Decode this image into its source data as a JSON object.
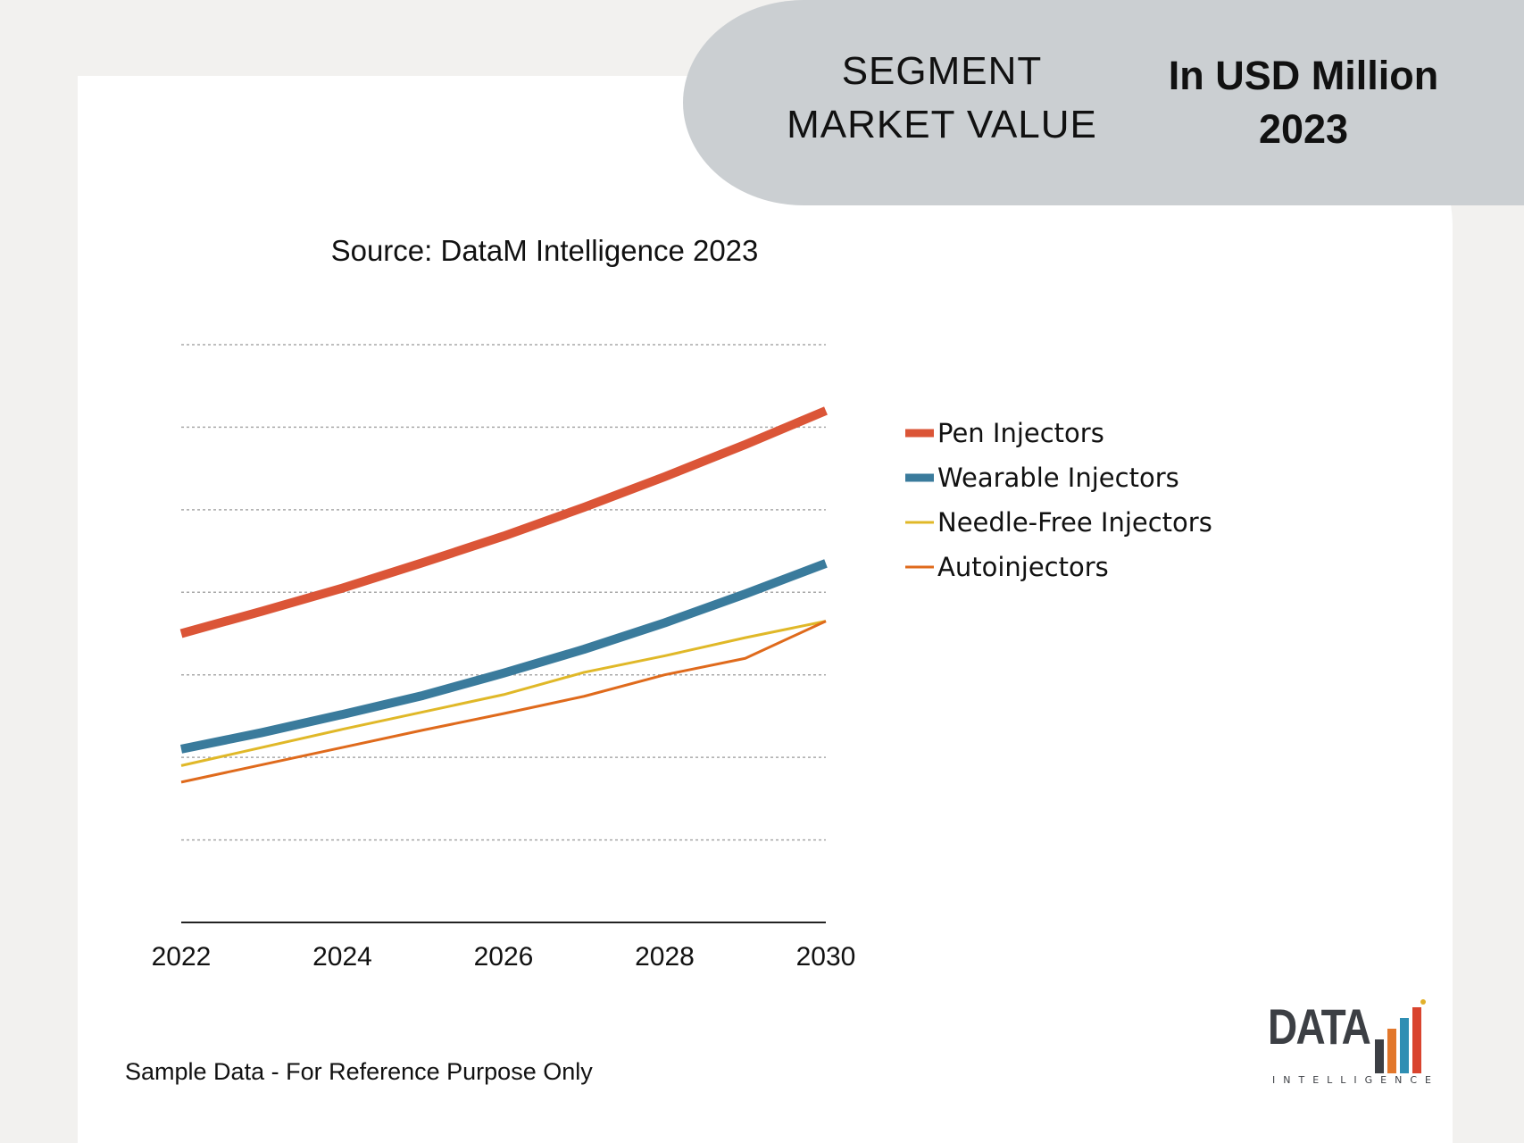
{
  "header": {
    "left_line1": "SEGMENT",
    "left_line2": "MARKET VALUE",
    "right_line1": "In USD Million",
    "right_line2": "2023"
  },
  "source": "Source: DataM Intelligence 2023",
  "footer": "Sample Data - For Reference Purpose Only",
  "logo": {
    "text": "DATA",
    "subtext": "INTELLIGENCE"
  },
  "chart_data": {
    "type": "line",
    "title": "",
    "xlabel": "",
    "ylabel": "",
    "x": [
      2022,
      2023,
      2024,
      2025,
      2026,
      2027,
      2028,
      2029,
      2030
    ],
    "x_ticks": [
      "2022",
      "2024",
      "2026",
      "2028",
      "2030"
    ],
    "xlim": [
      2022,
      2030
    ],
    "ylim": [
      0,
      7
    ],
    "grid": true,
    "legend_position": "right",
    "series": [
      {
        "name": "Pen Injectors",
        "color": "#db5537",
        "width": 10,
        "values": [
          3.5,
          3.77,
          4.05,
          4.36,
          4.68,
          5.03,
          5.4,
          5.79,
          6.2
        ]
      },
      {
        "name": "Wearable Injectors",
        "color": "#3a7b9c",
        "width": 10,
        "values": [
          2.1,
          2.3,
          2.52,
          2.75,
          3.02,
          3.31,
          3.63,
          3.98,
          4.35
        ]
      },
      {
        "name": "Needle-Free Injectors",
        "color": "#e0b828",
        "width": 3,
        "values": [
          1.9,
          2.12,
          2.34,
          2.55,
          2.76,
          3.03,
          3.23,
          3.45,
          3.65
        ]
      },
      {
        "name": "Autoinjectors",
        "color": "#df6a1c",
        "width": 3,
        "values": [
          1.7,
          1.91,
          2.12,
          2.33,
          2.53,
          2.74,
          3.0,
          3.2,
          3.65
        ]
      }
    ]
  }
}
